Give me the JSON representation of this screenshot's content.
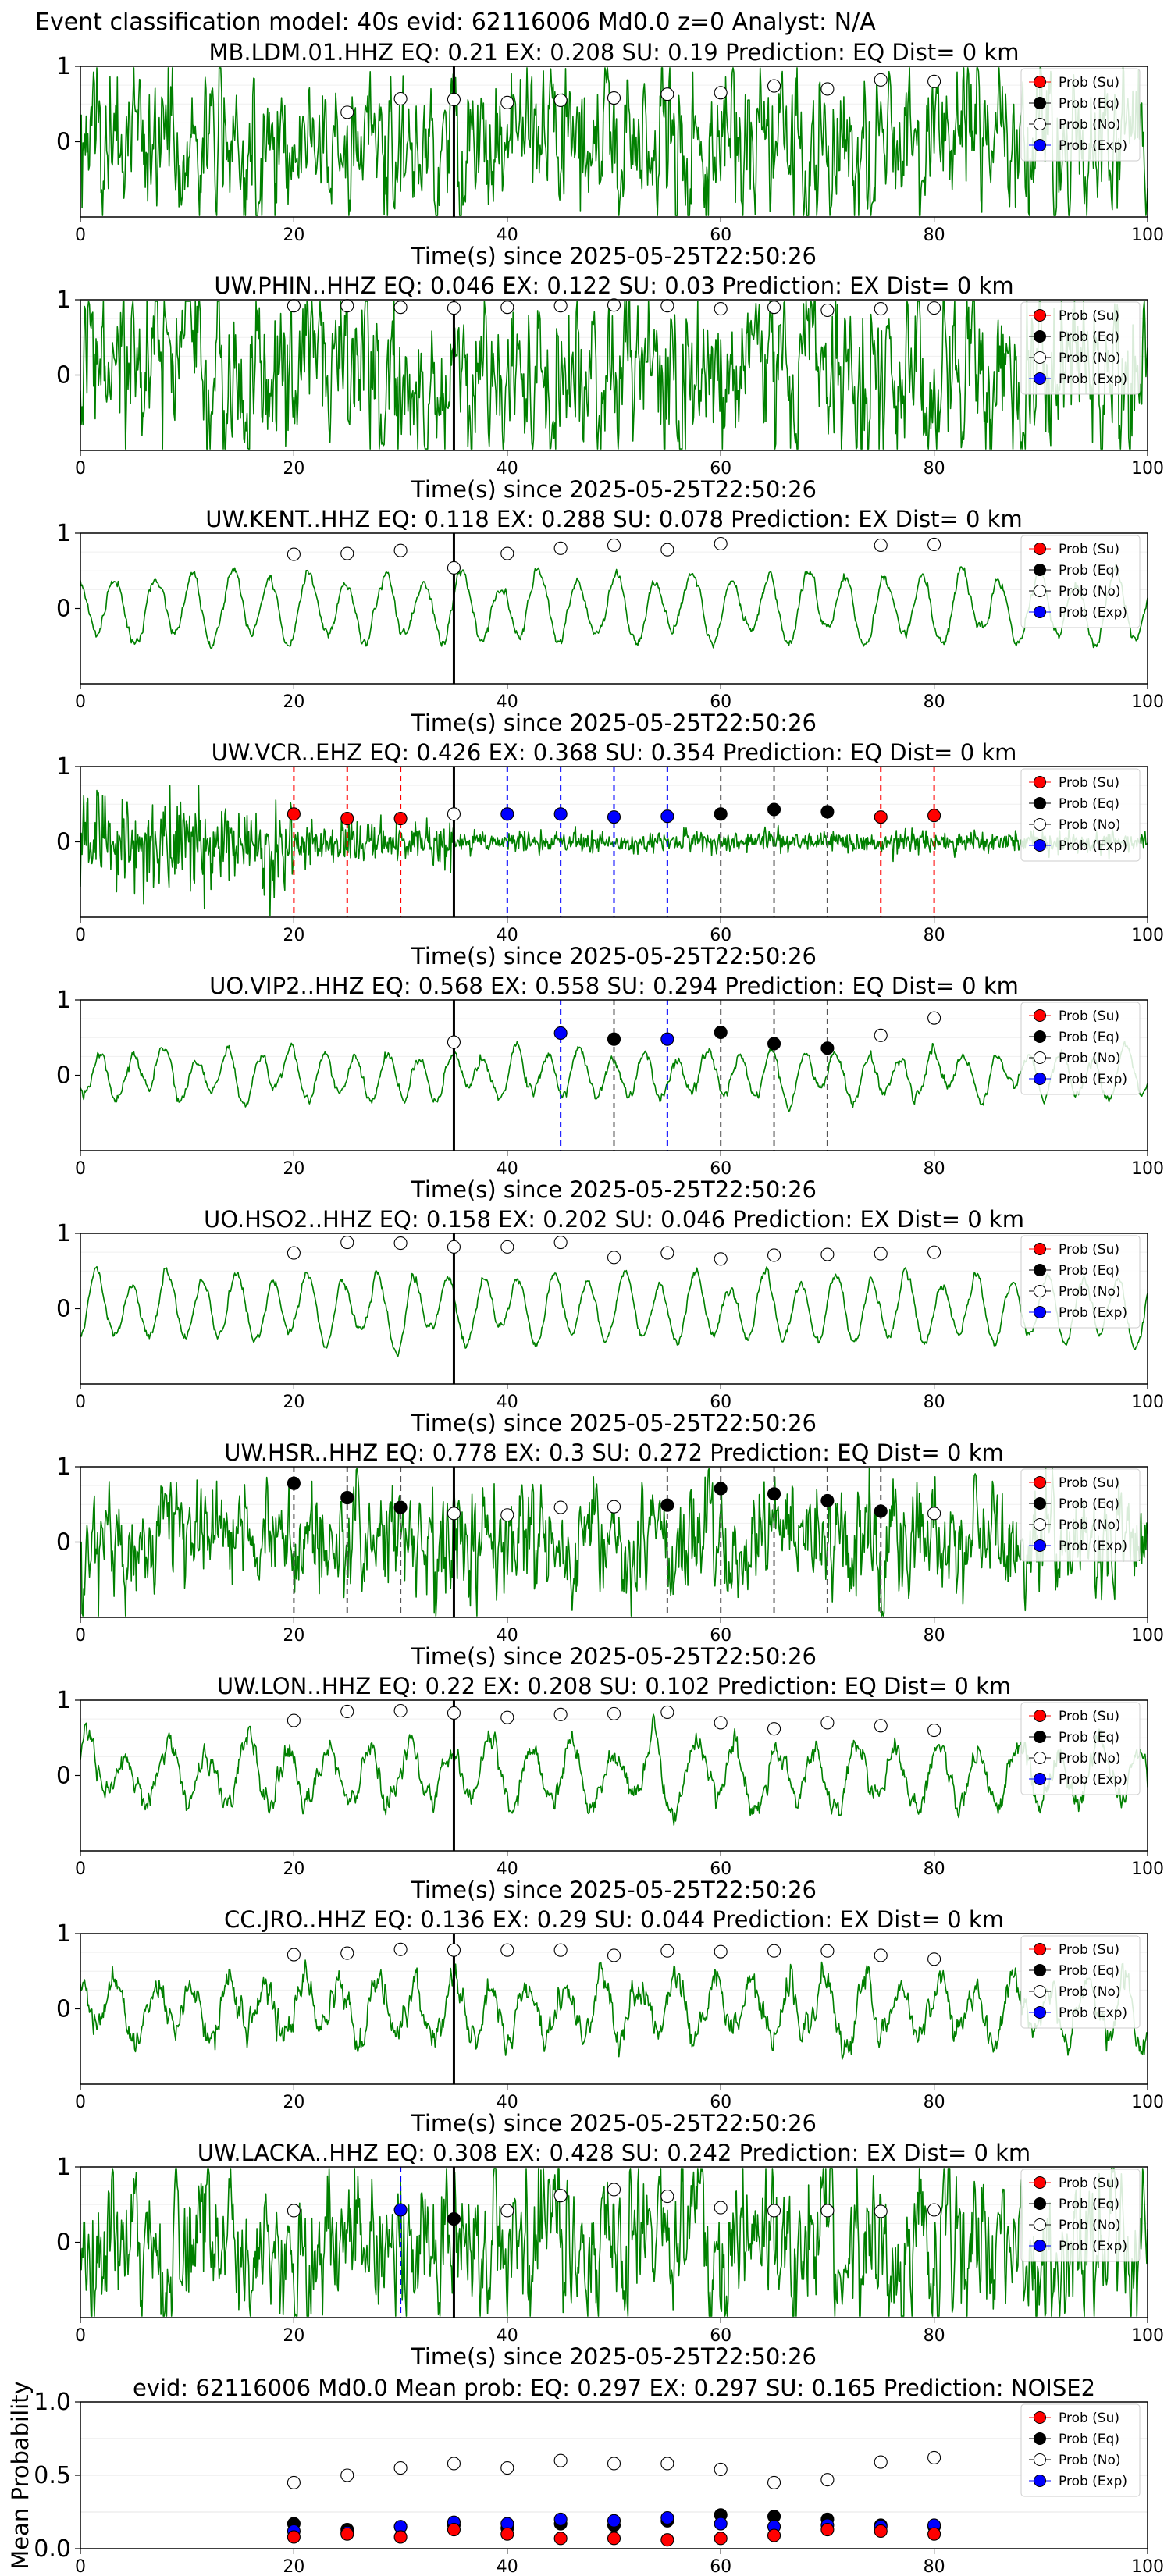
{
  "suptitle": "Event classification model: 40s evid: 62116006 Md0.0 z=0 Analyst: N/A",
  "colors": {
    "waveform": "#008000",
    "su": "#ff0000",
    "eq": "#000000",
    "no": "#ffffff",
    "exp": "#0000ff",
    "pick_line": "#000000"
  },
  "legend": [
    {
      "key": "su",
      "label": "Prob (Su)"
    },
    {
      "key": "eq",
      "label": "Prob (Eq)"
    },
    {
      "key": "no",
      "label": "Prob (No)"
    },
    {
      "key": "exp",
      "label": "Prob (Exp)"
    }
  ],
  "chart_data": [
    {
      "type": "line",
      "title": "MB.LDM.01.HHZ   EQ: 0.21   EX: 0.208   SU: 0.19   Prediction: EQ    Dist= 0 km",
      "xlabel": "Time(s) since 2025-05-25T22:50:26",
      "xlim": [
        0,
        100
      ],
      "ylim": [
        -1,
        1
      ],
      "xticks": [
        0,
        20,
        40,
        60,
        80,
        100
      ],
      "yticks": [
        0,
        1
      ],
      "pick_time": 35,
      "points": [
        {
          "x": 25,
          "y": 0.39,
          "cls": "no"
        },
        {
          "x": 30,
          "y": 0.57,
          "cls": "no"
        },
        {
          "x": 35,
          "y": 0.56,
          "cls": "no"
        },
        {
          "x": 40,
          "y": 0.52,
          "cls": "no"
        },
        {
          "x": 45,
          "y": 0.55,
          "cls": "no"
        },
        {
          "x": 50,
          "y": 0.58,
          "cls": "no"
        },
        {
          "x": 55,
          "y": 0.63,
          "cls": "no"
        },
        {
          "x": 60,
          "y": 0.65,
          "cls": "no"
        },
        {
          "x": 65,
          "y": 0.74,
          "cls": "no"
        },
        {
          "x": 70,
          "y": 0.7,
          "cls": "no"
        },
        {
          "x": 75,
          "y": 0.82,
          "cls": "no"
        },
        {
          "x": 80,
          "y": 0.8,
          "cls": "no"
        }
      ],
      "vlines": []
    },
    {
      "type": "line",
      "title": "UW.PHIN..HHZ   EQ: 0.046   EX: 0.122   SU: 0.03   Prediction: EX    Dist= 0 km",
      "xlabel": "Time(s) since 2025-05-25T22:50:26",
      "xlim": [
        0,
        100
      ],
      "ylim": [
        -1,
        1
      ],
      "xticks": [
        0,
        20,
        40,
        60,
        80,
        100
      ],
      "yticks": [
        0,
        1
      ],
      "pick_time": 35,
      "points": [
        {
          "x": 20,
          "y": 0.92,
          "cls": "no"
        },
        {
          "x": 25,
          "y": 0.92,
          "cls": "no"
        },
        {
          "x": 30,
          "y": 0.9,
          "cls": "no"
        },
        {
          "x": 35,
          "y": 0.89,
          "cls": "no"
        },
        {
          "x": 40,
          "y": 0.9,
          "cls": "no"
        },
        {
          "x": 45,
          "y": 0.92,
          "cls": "no"
        },
        {
          "x": 50,
          "y": 0.93,
          "cls": "no"
        },
        {
          "x": 55,
          "y": 0.92,
          "cls": "no"
        },
        {
          "x": 60,
          "y": 0.88,
          "cls": "no"
        },
        {
          "x": 65,
          "y": 0.9,
          "cls": "no"
        },
        {
          "x": 70,
          "y": 0.86,
          "cls": "no"
        },
        {
          "x": 75,
          "y": 0.88,
          "cls": "no"
        },
        {
          "x": 80,
          "y": 0.89,
          "cls": "no"
        }
      ],
      "vlines": []
    },
    {
      "type": "line",
      "title": "UW.KENT..HHZ   EQ: 0.118   EX: 0.288   SU: 0.078   Prediction: EX    Dist= 0 km",
      "xlabel": "Time(s) since 2025-05-25T22:50:26",
      "xlim": [
        0,
        100
      ],
      "ylim": [
        -1,
        1
      ],
      "xticks": [
        0,
        20,
        40,
        60,
        80,
        100
      ],
      "yticks": [
        0,
        1
      ],
      "pick_time": 35,
      "points": [
        {
          "x": 20,
          "y": 0.72,
          "cls": "no"
        },
        {
          "x": 25,
          "y": 0.73,
          "cls": "no"
        },
        {
          "x": 30,
          "y": 0.77,
          "cls": "no"
        },
        {
          "x": 35,
          "y": 0.54,
          "cls": "no"
        },
        {
          "x": 40,
          "y": 0.73,
          "cls": "no"
        },
        {
          "x": 45,
          "y": 0.8,
          "cls": "no"
        },
        {
          "x": 50,
          "y": 0.84,
          "cls": "no"
        },
        {
          "x": 55,
          "y": 0.78,
          "cls": "no"
        },
        {
          "x": 60,
          "y": 0.86,
          "cls": "no"
        },
        {
          "x": 75,
          "y": 0.84,
          "cls": "no"
        },
        {
          "x": 80,
          "y": 0.85,
          "cls": "no"
        }
      ],
      "vlines": []
    },
    {
      "type": "line",
      "title": "UW.VCR..EHZ   EQ: 0.426   EX: 0.368   SU: 0.354   Prediction: EQ    Dist= 0 km",
      "xlabel": "Time(s) since 2025-05-25T22:50:26",
      "xlim": [
        0,
        100
      ],
      "ylim": [
        -1,
        1
      ],
      "xticks": [
        0,
        20,
        40,
        60,
        80,
        100
      ],
      "yticks": [
        0,
        1
      ],
      "pick_time": 35,
      "points": [
        {
          "x": 20,
          "y": 0.37,
          "cls": "su"
        },
        {
          "x": 25,
          "y": 0.31,
          "cls": "su"
        },
        {
          "x": 30,
          "y": 0.31,
          "cls": "su"
        },
        {
          "x": 35,
          "y": 0.37,
          "cls": "no"
        },
        {
          "x": 40,
          "y": 0.37,
          "cls": "exp"
        },
        {
          "x": 45,
          "y": 0.37,
          "cls": "exp"
        },
        {
          "x": 50,
          "y": 0.33,
          "cls": "exp"
        },
        {
          "x": 55,
          "y": 0.34,
          "cls": "exp"
        },
        {
          "x": 60,
          "y": 0.37,
          "cls": "eq"
        },
        {
          "x": 65,
          "y": 0.43,
          "cls": "eq"
        },
        {
          "x": 70,
          "y": 0.4,
          "cls": "eq"
        },
        {
          "x": 75,
          "y": 0.33,
          "cls": "su"
        },
        {
          "x": 80,
          "y": 0.35,
          "cls": "su"
        }
      ],
      "vlines": [
        {
          "x": 20,
          "cls": "su"
        },
        {
          "x": 25,
          "cls": "su"
        },
        {
          "x": 30,
          "cls": "su"
        },
        {
          "x": 40,
          "cls": "exp"
        },
        {
          "x": 45,
          "cls": "exp"
        },
        {
          "x": 50,
          "cls": "exp"
        },
        {
          "x": 55,
          "cls": "exp"
        },
        {
          "x": 60,
          "cls": "eq"
        },
        {
          "x": 65,
          "cls": "eq"
        },
        {
          "x": 70,
          "cls": "eq"
        },
        {
          "x": 75,
          "cls": "su"
        },
        {
          "x": 80,
          "cls": "su"
        }
      ]
    },
    {
      "type": "line",
      "title": "UO.VIP2..HHZ   EQ: 0.568   EX: 0.558   SU: 0.294   Prediction: EQ    Dist= 0 km",
      "xlabel": "Time(s) since 2025-05-25T22:50:26",
      "xlim": [
        0,
        100
      ],
      "ylim": [
        -1,
        1
      ],
      "xticks": [
        0,
        20,
        40,
        60,
        80,
        100
      ],
      "yticks": [
        0,
        1
      ],
      "pick_time": 35,
      "points": [
        {
          "x": 35,
          "y": 0.44,
          "cls": "no"
        },
        {
          "x": 45,
          "y": 0.56,
          "cls": "exp"
        },
        {
          "x": 50,
          "y": 0.48,
          "cls": "eq"
        },
        {
          "x": 55,
          "y": 0.48,
          "cls": "exp"
        },
        {
          "x": 60,
          "y": 0.57,
          "cls": "eq"
        },
        {
          "x": 65,
          "y": 0.42,
          "cls": "eq"
        },
        {
          "x": 70,
          "y": 0.36,
          "cls": "eq"
        },
        {
          "x": 75,
          "y": 0.53,
          "cls": "no"
        },
        {
          "x": 80,
          "y": 0.76,
          "cls": "no"
        }
      ],
      "vlines": [
        {
          "x": 45,
          "cls": "exp"
        },
        {
          "x": 50,
          "cls": "eq"
        },
        {
          "x": 55,
          "cls": "exp"
        },
        {
          "x": 60,
          "cls": "eq"
        },
        {
          "x": 65,
          "cls": "eq"
        },
        {
          "x": 70,
          "cls": "eq"
        }
      ]
    },
    {
      "type": "line",
      "title": "UO.HSO2..HHZ   EQ: 0.158   EX: 0.202   SU: 0.046   Prediction: EX    Dist= 0 km",
      "xlabel": "Time(s) since 2025-05-25T22:50:26",
      "xlim": [
        0,
        100
      ],
      "ylim": [
        -1,
        1
      ],
      "xticks": [
        0,
        20,
        40,
        60,
        80,
        100
      ],
      "yticks": [
        0,
        1
      ],
      "pick_time": 35,
      "points": [
        {
          "x": 20,
          "y": 0.74,
          "cls": "no"
        },
        {
          "x": 25,
          "y": 0.88,
          "cls": "no"
        },
        {
          "x": 30,
          "y": 0.87,
          "cls": "no"
        },
        {
          "x": 35,
          "y": 0.82,
          "cls": "no"
        },
        {
          "x": 40,
          "y": 0.82,
          "cls": "no"
        },
        {
          "x": 45,
          "y": 0.88,
          "cls": "no"
        },
        {
          "x": 50,
          "y": 0.68,
          "cls": "no"
        },
        {
          "x": 55,
          "y": 0.74,
          "cls": "no"
        },
        {
          "x": 60,
          "y": 0.66,
          "cls": "no"
        },
        {
          "x": 65,
          "y": 0.71,
          "cls": "no"
        },
        {
          "x": 70,
          "y": 0.72,
          "cls": "no"
        },
        {
          "x": 75,
          "y": 0.73,
          "cls": "no"
        },
        {
          "x": 80,
          "y": 0.75,
          "cls": "no"
        }
      ],
      "vlines": []
    },
    {
      "type": "line",
      "title": "UW.HSR..HHZ   EQ: 0.778   EX: 0.3   SU: 0.272   Prediction: EQ    Dist= 0 km",
      "xlabel": "Time(s) since 2025-05-25T22:50:26",
      "xlim": [
        0,
        100
      ],
      "ylim": [
        -1,
        1
      ],
      "xticks": [
        0,
        20,
        40,
        60,
        80,
        100
      ],
      "yticks": [
        0,
        1
      ],
      "pick_time": 35,
      "points": [
        {
          "x": 20,
          "y": 0.78,
          "cls": "eq"
        },
        {
          "x": 25,
          "y": 0.59,
          "cls": "eq"
        },
        {
          "x": 30,
          "y": 0.46,
          "cls": "eq"
        },
        {
          "x": 35,
          "y": 0.38,
          "cls": "no"
        },
        {
          "x": 40,
          "y": 0.36,
          "cls": "no"
        },
        {
          "x": 45,
          "y": 0.46,
          "cls": "no"
        },
        {
          "x": 50,
          "y": 0.47,
          "cls": "no"
        },
        {
          "x": 55,
          "y": 0.49,
          "cls": "eq"
        },
        {
          "x": 60,
          "y": 0.71,
          "cls": "eq"
        },
        {
          "x": 65,
          "y": 0.64,
          "cls": "eq"
        },
        {
          "x": 70,
          "y": 0.55,
          "cls": "eq"
        },
        {
          "x": 75,
          "y": 0.41,
          "cls": "eq"
        },
        {
          "x": 80,
          "y": 0.38,
          "cls": "no"
        }
      ],
      "vlines": [
        {
          "x": 20,
          "cls": "eq"
        },
        {
          "x": 25,
          "cls": "eq"
        },
        {
          "x": 30,
          "cls": "eq"
        },
        {
          "x": 55,
          "cls": "eq"
        },
        {
          "x": 60,
          "cls": "eq"
        },
        {
          "x": 65,
          "cls": "eq"
        },
        {
          "x": 70,
          "cls": "eq"
        },
        {
          "x": 75,
          "cls": "eq"
        }
      ]
    },
    {
      "type": "line",
      "title": "UW.LON..HHZ   EQ: 0.22   EX: 0.208   SU: 0.102   Prediction: EQ    Dist= 0 km",
      "xlabel": "Time(s) since 2025-05-25T22:50:26",
      "xlim": [
        0,
        100
      ],
      "ylim": [
        -1,
        1
      ],
      "xticks": [
        0,
        20,
        40,
        60,
        80,
        100
      ],
      "yticks": [
        0,
        1
      ],
      "pick_time": 35,
      "points": [
        {
          "x": 20,
          "y": 0.73,
          "cls": "no"
        },
        {
          "x": 25,
          "y": 0.85,
          "cls": "no"
        },
        {
          "x": 30,
          "y": 0.86,
          "cls": "no"
        },
        {
          "x": 35,
          "y": 0.83,
          "cls": "no"
        },
        {
          "x": 40,
          "y": 0.77,
          "cls": "no"
        },
        {
          "x": 45,
          "y": 0.81,
          "cls": "no"
        },
        {
          "x": 50,
          "y": 0.82,
          "cls": "no"
        },
        {
          "x": 55,
          "y": 0.84,
          "cls": "no"
        },
        {
          "x": 60,
          "y": 0.7,
          "cls": "no"
        },
        {
          "x": 65,
          "y": 0.62,
          "cls": "no"
        },
        {
          "x": 70,
          "y": 0.7,
          "cls": "no"
        },
        {
          "x": 75,
          "y": 0.66,
          "cls": "no"
        },
        {
          "x": 80,
          "y": 0.6,
          "cls": "no"
        }
      ],
      "vlines": []
    },
    {
      "type": "line",
      "title": "CC.JRO..HHZ   EQ: 0.136   EX: 0.29   SU: 0.044   Prediction: EX    Dist= 0 km",
      "xlabel": "Time(s) since 2025-05-25T22:50:26",
      "xlim": [
        0,
        100
      ],
      "ylim": [
        -1,
        1
      ],
      "xticks": [
        0,
        20,
        40,
        60,
        80,
        100
      ],
      "yticks": [
        0,
        1
      ],
      "pick_time": 35,
      "points": [
        {
          "x": 20,
          "y": 0.72,
          "cls": "no"
        },
        {
          "x": 25,
          "y": 0.74,
          "cls": "no"
        },
        {
          "x": 30,
          "y": 0.79,
          "cls": "no"
        },
        {
          "x": 35,
          "y": 0.78,
          "cls": "no"
        },
        {
          "x": 40,
          "y": 0.78,
          "cls": "no"
        },
        {
          "x": 45,
          "y": 0.78,
          "cls": "no"
        },
        {
          "x": 50,
          "y": 0.71,
          "cls": "no"
        },
        {
          "x": 55,
          "y": 0.77,
          "cls": "no"
        },
        {
          "x": 60,
          "y": 0.76,
          "cls": "no"
        },
        {
          "x": 65,
          "y": 0.77,
          "cls": "no"
        },
        {
          "x": 70,
          "y": 0.77,
          "cls": "no"
        },
        {
          "x": 75,
          "y": 0.71,
          "cls": "no"
        },
        {
          "x": 80,
          "y": 0.66,
          "cls": "no"
        }
      ],
      "vlines": []
    },
    {
      "type": "line",
      "title": "UW.LACKA..HHZ   EQ: 0.308   EX: 0.428   SU: 0.242   Prediction: EX    Dist= 0 km",
      "xlabel": "Time(s) since 2025-05-25T22:50:26",
      "xlim": [
        0,
        100
      ],
      "ylim": [
        -1,
        1
      ],
      "xticks": [
        0,
        20,
        40,
        60,
        80,
        100
      ],
      "yticks": [
        0,
        1
      ],
      "pick_time": 35,
      "points": [
        {
          "x": 20,
          "y": 0.42,
          "cls": "no"
        },
        {
          "x": 30,
          "y": 0.43,
          "cls": "exp"
        },
        {
          "x": 35,
          "y": 0.31,
          "cls": "eq"
        },
        {
          "x": 40,
          "y": 0.42,
          "cls": "no"
        },
        {
          "x": 45,
          "y": 0.62,
          "cls": "no"
        },
        {
          "x": 50,
          "y": 0.7,
          "cls": "no"
        },
        {
          "x": 55,
          "y": 0.61,
          "cls": "no"
        },
        {
          "x": 60,
          "y": 0.46,
          "cls": "no"
        },
        {
          "x": 65,
          "y": 0.42,
          "cls": "no"
        },
        {
          "x": 70,
          "y": 0.42,
          "cls": "no"
        },
        {
          "x": 75,
          "y": 0.41,
          "cls": "no"
        },
        {
          "x": 80,
          "y": 0.43,
          "cls": "no"
        }
      ],
      "vlines": [
        {
          "x": 30,
          "cls": "exp"
        }
      ]
    },
    {
      "type": "scatter",
      "title": "evid: 62116006   Md0.0   Mean prob:   EQ: 0.297   EX: 0.297   SU: 0.165   Prediction: NOISE2",
      "xlabel": "",
      "ylabel": "Mean Probability",
      "xlim": [
        0,
        100
      ],
      "ylim": [
        0,
        1
      ],
      "xticks": [
        0,
        20,
        40,
        60,
        80,
        100
      ],
      "yticks": [
        0.0,
        0.5,
        1.0
      ],
      "ytick_labels": [
        "0.0",
        "0.5",
        "1.0"
      ],
      "x": [
        20,
        25,
        30,
        35,
        40,
        45,
        50,
        55,
        60,
        65,
        70,
        75,
        80
      ],
      "series": [
        {
          "name": "Prob (No)",
          "cls": "no",
          "values": [
            0.45,
            0.5,
            0.55,
            0.58,
            0.55,
            0.6,
            0.58,
            0.58,
            0.54,
            0.45,
            0.47,
            0.59,
            0.62
          ]
        },
        {
          "name": "Prob (Eq)",
          "cls": "eq",
          "values": [
            0.17,
            0.13,
            0.15,
            0.16,
            0.14,
            0.17,
            0.16,
            0.19,
            0.23,
            0.22,
            0.2,
            0.16,
            0.15
          ]
        },
        {
          "name": "Prob (Exp)",
          "cls": "exp",
          "values": [
            0.12,
            0.11,
            0.15,
            0.18,
            0.17,
            0.2,
            0.19,
            0.21,
            0.17,
            0.15,
            0.16,
            0.15,
            0.16
          ]
        },
        {
          "name": "Prob (Su)",
          "cls": "su",
          "values": [
            0.08,
            0.1,
            0.08,
            0.13,
            0.1,
            0.07,
            0.07,
            0.06,
            0.07,
            0.09,
            0.13,
            0.12,
            0.1
          ]
        }
      ]
    }
  ]
}
